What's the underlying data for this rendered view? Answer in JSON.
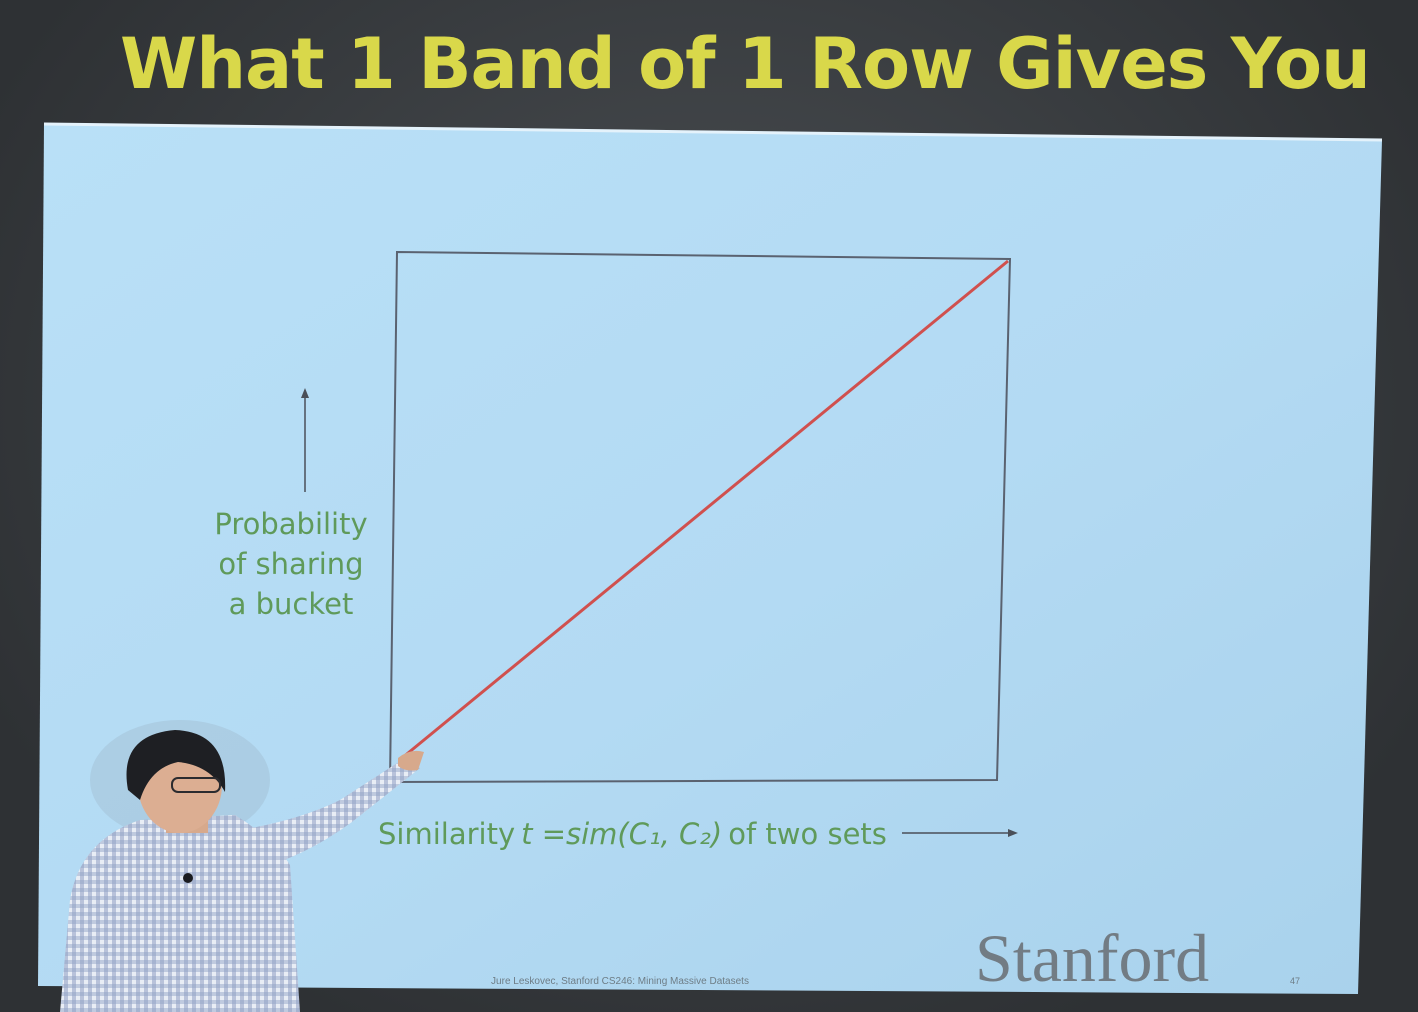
{
  "title": "What 1 Band of 1 Row Gives You",
  "plot": {
    "ylabel_lines": [
      "Probability",
      "of sharing",
      "a bucket"
    ],
    "xlabel_prefix": "Similarity",
    "xlabel_math": "t =sim(C₁, C₂)",
    "xlabel_suffix": "of two sets",
    "curve": [
      [
        0,
        0
      ],
      [
        1,
        1
      ]
    ]
  },
  "footer": {
    "credit": "Jure Leskovec, Stanford CS246: Mining Massive Datasets",
    "logo": "Stanford",
    "page": "47"
  },
  "colors": {
    "slide_bg": "#b6dcf4",
    "title": "#d9d84a",
    "curve": "#d0504e",
    "label": "#5f9a5a"
  }
}
